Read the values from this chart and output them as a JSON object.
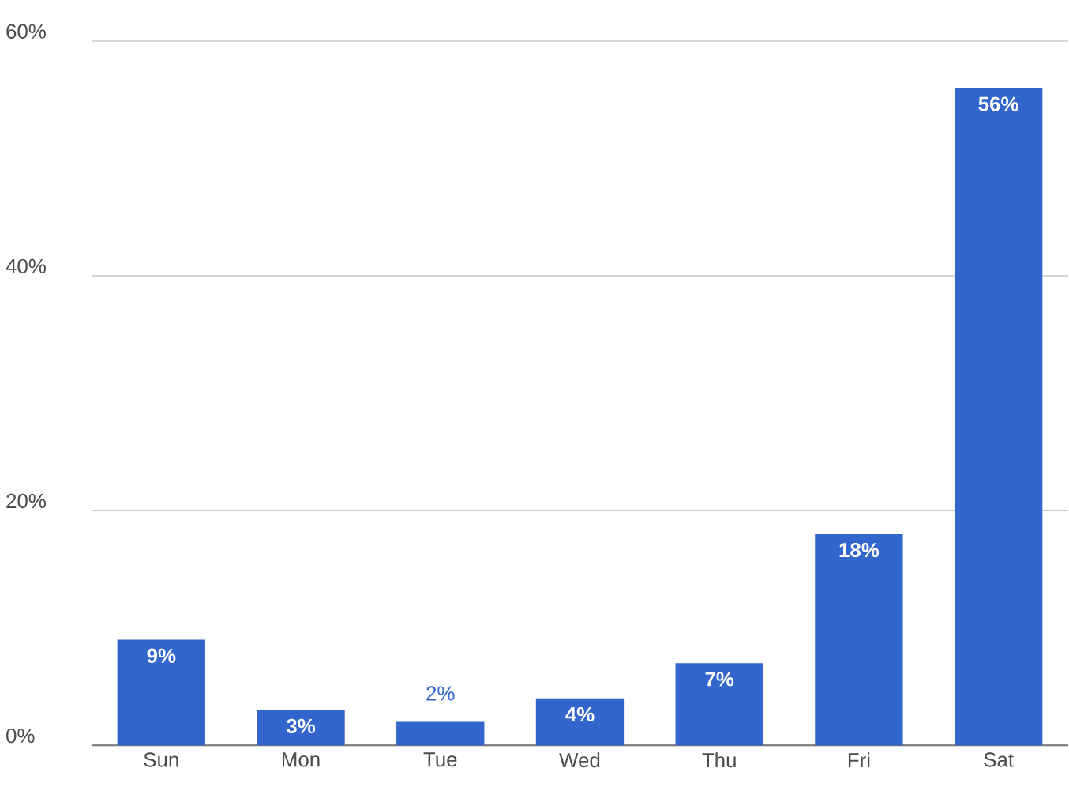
{
  "chart_data": {
    "type": "bar",
    "categories": [
      "Sun",
      "Mon",
      "Tue",
      "Wed",
      "Thu",
      "Fri",
      "Sat"
    ],
    "values": [
      9,
      3,
      2,
      4,
      7,
      18,
      56
    ],
    "value_labels": [
      "9%",
      "3%",
      "2%",
      "4%",
      "7%",
      "18%",
      "56%"
    ],
    "color": "#3366cc",
    "ylim": [
      0,
      60
    ],
    "yticks": [
      {
        "value": 0,
        "label": "0%"
      },
      {
        "value": 20,
        "label": "20%"
      },
      {
        "value": 40,
        "label": "40%"
      },
      {
        "value": 60,
        "label": "60%"
      }
    ],
    "grid": "y"
  }
}
